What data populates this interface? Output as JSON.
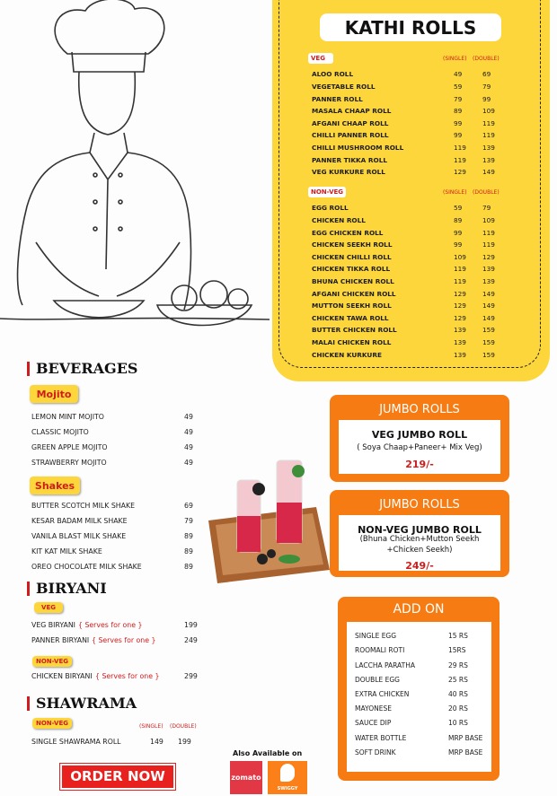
{
  "kathi_rolls": {
    "title": "KATHI ROLLS",
    "veg": {
      "label": "VEG",
      "single_header": "(SINGLE)",
      "double_header": "(DOUBLE)",
      "items": [
        [
          "ALOO ROLL",
          49,
          69
        ],
        [
          "VEGETABLE ROLL",
          59,
          79
        ],
        [
          "PANNER ROLL",
          79,
          99
        ],
        [
          "MASALA CHAAP ROLL",
          89,
          109
        ],
        [
          "AFGANI CHAAP ROLL",
          99,
          119
        ],
        [
          "CHILLI PANNER ROLL",
          99,
          119
        ],
        [
          "CHILLI MUSHROOM ROLL",
          119,
          139
        ],
        [
          "PANNER TIKKA ROLL",
          119,
          139
        ],
        [
          "VEG KURKURE ROLL",
          129,
          149
        ]
      ]
    },
    "non_veg": {
      "label": "NON-VEG",
      "single_header": "(SINGLE)",
      "double_header": "(DOUBLE)",
      "items": [
        [
          "EGG ROLL",
          59,
          79
        ],
        [
          "CHICKEN ROLL",
          89,
          109
        ],
        [
          "EGG CHICKEN ROLL",
          99,
          119
        ],
        [
          "CHICKEN SEEKH ROLL",
          99,
          119
        ],
        [
          "CHICKEN CHILLI ROLL",
          109,
          129
        ],
        [
          "CHICKEN TIKKA ROLL",
          119,
          139
        ],
        [
          "BHUNA CHICKEN ROLL",
          119,
          139
        ],
        [
          "AFGANI CHICKEN ROLL",
          129,
          149
        ],
        [
          "MUTTON SEEKH ROLL",
          129,
          149
        ],
        [
          "CHICKEN TAWA ROLL",
          129,
          149
        ],
        [
          "BUTTER CHICKEN ROLL",
          139,
          159
        ],
        [
          "MALAI CHICKEN ROLL",
          139,
          159
        ],
        [
          "CHICKEN KURKURE",
          139,
          159
        ]
      ]
    }
  },
  "beverages": {
    "title": "BEVERAGES",
    "mojito": {
      "label": "Mojito",
      "items": [
        [
          "LEMON MINT MOJITO",
          49
        ],
        [
          "CLASSIC MOJITO",
          49
        ],
        [
          "GREEN APPLE MOJITO",
          49
        ],
        [
          "STRAWBERRY MOJITO",
          49
        ]
      ]
    },
    "shakes": {
      "label": "Shakes",
      "items": [
        [
          "BUTTER SCOTCH MILK SHAKE",
          69
        ],
        [
          "KESAR BADAM MILK SHAKE",
          79
        ],
        [
          "VANILA BLAST MILK SHAKE",
          89
        ],
        [
          "KIT KAT MILK SHAKE",
          89
        ],
        [
          "OREO CHOCOLATE MILK SHAKE",
          89
        ]
      ]
    }
  },
  "biryani": {
    "title": "BIRYANI",
    "veg": {
      "label": "VEG",
      "items": [
        [
          "VEG BIRYANI",
          "{ Serves for one }",
          199
        ],
        [
          "PANNER BIRYANI",
          "{ Serves for one }",
          249
        ]
      ]
    },
    "non_veg": {
      "label": "NON-VEG",
      "items": [
        [
          "CHICKEN BIRYANI",
          "{ Serves for one }",
          299
        ]
      ]
    }
  },
  "shawrama": {
    "title": "SHAWRAMA",
    "label": "NON-VEG",
    "single_header": "(SINGLE)",
    "double_header": "(DOUBLE)",
    "items": [
      [
        "SINGLE SHAWRAMA ROLL",
        149,
        199
      ]
    ]
  },
  "jumbo_rolls": [
    {
      "title": "JUMBO ROLLS",
      "name": "VEG JUMBO ROLL",
      "description": "( Soya Chaap+Paneer+ Mix Veg)",
      "price": "219/-"
    },
    {
      "title": "JUMBO ROLLS",
      "name": "NON-VEG JUMBO ROLL",
      "description": "(Bhuna Chicken+Mutton Seekh +Chicken Seekh)",
      "price": "249/-"
    }
  ],
  "add_on": {
    "title": "ADD ON",
    "items": [
      [
        "SINGLE EGG",
        "15 RS"
      ],
      [
        "ROOMALI ROTI",
        "15RS"
      ],
      [
        "LACCHA PARATHA",
        "29 RS"
      ],
      [
        "DOUBLE EGG",
        "25 RS"
      ],
      [
        "EXTRA CHICKEN",
        "40 RS"
      ],
      [
        "MAYONESE",
        "20 RS"
      ],
      [
        "SAUCE DIP",
        "10 RS"
      ],
      [
        "WATER BOTTLE",
        "MRP BASE"
      ],
      [
        "SOFT DRINK",
        "MRP BASE"
      ]
    ]
  },
  "footer": {
    "order_button": "ORDER NOW",
    "available_text": "Also Available on",
    "zomato": "zomato",
    "swiggy": "SWIGGY"
  }
}
